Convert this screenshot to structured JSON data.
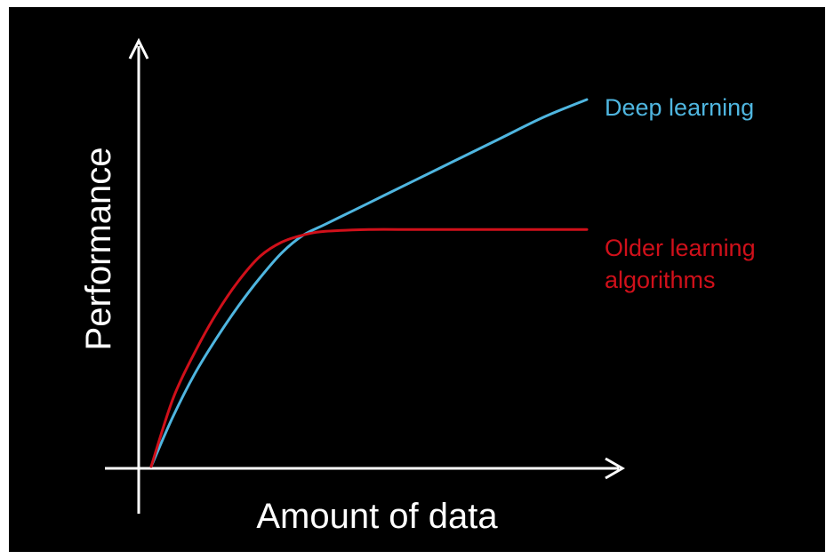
{
  "chart_data": {
    "type": "line",
    "title": "",
    "xlabel": "Amount of data",
    "ylabel": "Performance",
    "x_ticks": [],
    "y_ticks": [],
    "grid": false,
    "legend": "none (series labelled directly at right end of lines)",
    "xlim": [
      0,
      100
    ],
    "ylim": [
      0,
      100
    ],
    "series": [
      {
        "name": "Deep learning",
        "color": "#4fb6e0",
        "x": [
          0,
          5,
          10,
          15,
          20,
          25,
          30,
          35,
          40,
          50,
          60,
          70,
          80,
          90,
          100
        ],
        "y": [
          0,
          14,
          26,
          36,
          45,
          53,
          60,
          65,
          68,
          74,
          80,
          86,
          92,
          98,
          103
        ]
      },
      {
        "name": "Older learning algorithms",
        "name_lines": [
          "Older learning",
          "algorithms"
        ],
        "color": "#d0101a",
        "x": [
          0,
          5,
          10,
          15,
          20,
          25,
          30,
          35,
          40,
          50,
          60,
          70,
          80,
          90,
          100
        ],
        "y": [
          0,
          19,
          32,
          43,
          52,
          59,
          63,
          65,
          66,
          66.5,
          66.5,
          66.5,
          66.5,
          66.5,
          66.5
        ]
      }
    ]
  }
}
